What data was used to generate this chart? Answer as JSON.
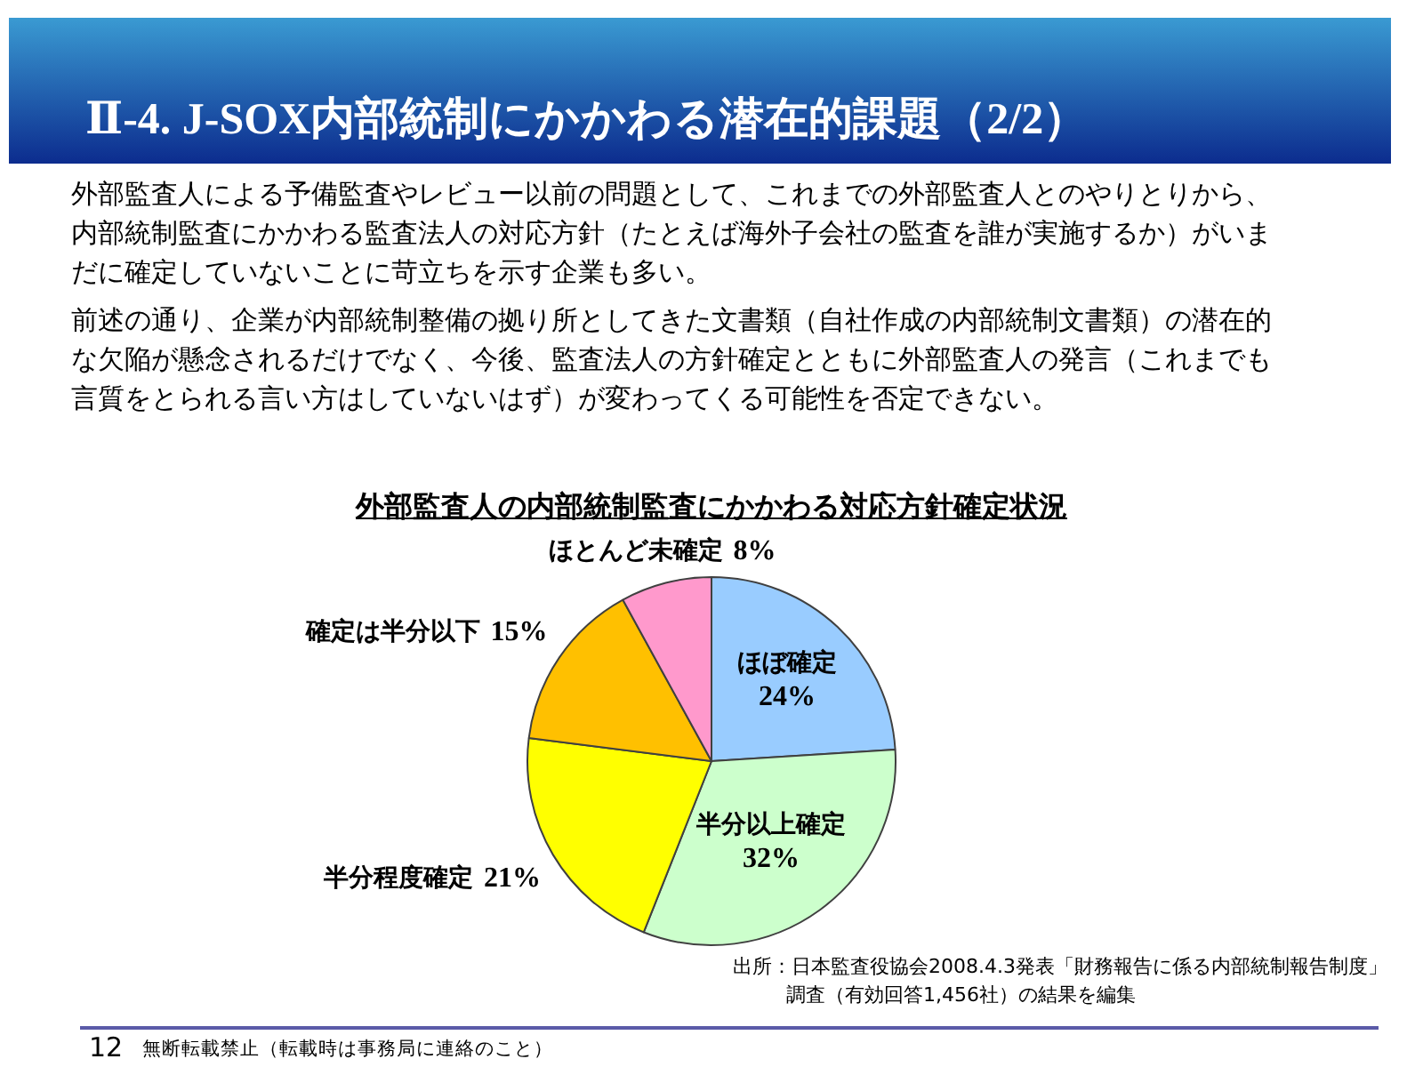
{
  "chart_data": {
    "type": "pie",
    "title": "Ⅱ-4. J-SOX内部統制にかかわる潜在的課題（2/2）",
    "subtitle": "外部監査人の内部統制監査にかかわる対応方針確定状況",
    "categories": [
      "ほぼ確定",
      "半分以上確定",
      "半分程度確定",
      "確定は半分以下",
      "ほとんど未確定"
    ],
    "values": [
      24,
      32,
      21,
      15,
      8
    ],
    "value_labels": [
      "24%",
      "32%",
      "21%",
      "15%",
      "8%"
    ],
    "colors": [
      "#99ccff",
      "#ccffcc",
      "#ffff00",
      "#ffc000",
      "#ff99cc"
    ],
    "annotations": [
      "外部監査人による予備監査やレビュー以前の問題として、これまでの外部監査人とのやりとりから、内部統制監査にかかわる監査法人の対応方針（たとえば海外子会社の監査を誰が実施するか）がいまだに確定していないことに苛立ちを示す企業も多い。",
      "前述の通り、企業が内部統制整備の拠り所としてきた文書類（自社作成の内部統制文書類）の潜在的な欠陥が懸念されるだけでなく、今後、監査法人の方針確定とともに外部監査人の発言（これまでも言質をとられる言い方はしていないはず）が変わってくる可能性を否定できない。",
      "出所：日本監査役協会2008.4.3発表「財務報告に係る内部統制報告制度」調査（有効回答1,456社）の結果を編集",
      "無断転載禁止（転載時は事務局に連絡のこと）",
      "12"
    ]
  }
}
